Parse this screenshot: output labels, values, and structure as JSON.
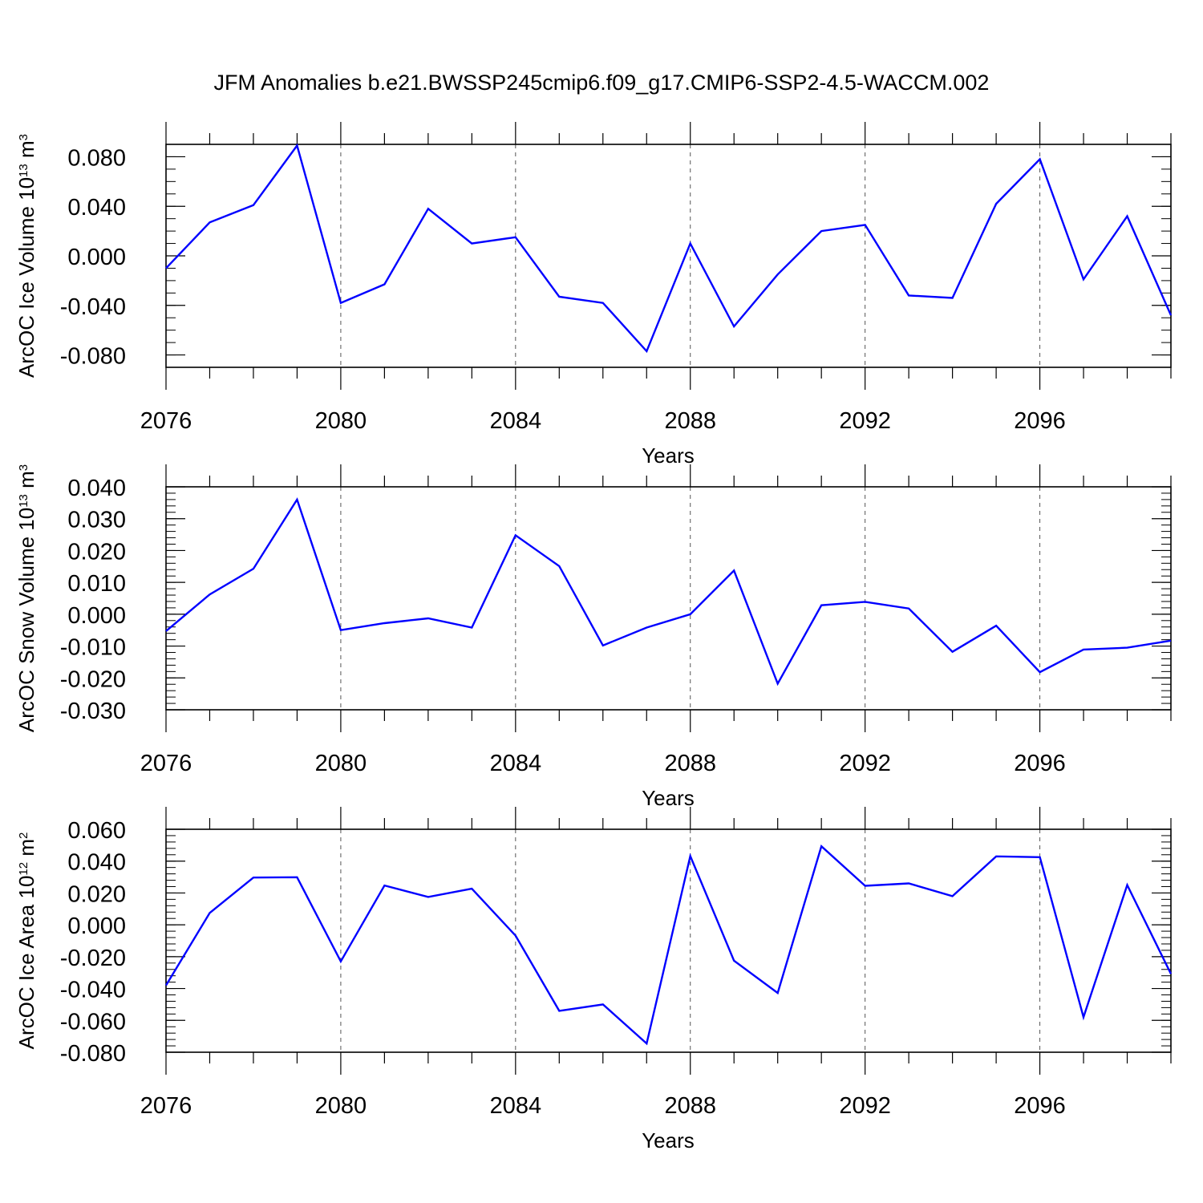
{
  "title": "JFM Anomalies b.e21.BWSSP245cmip6.f09_g17.CMIP6-SSP2-4.5-WACCM.002",
  "line_color": "#0000ff",
  "chart_data": [
    {
      "type": "line",
      "ylabel": "ArcOC Ice Volume",
      "yunit_base": "10",
      "yunit_exp": "13",
      "yunit_base_unit": "m",
      "yunit_unit_exp": "3",
      "xlabel": "Years",
      "xlim": [
        2076,
        2099
      ],
      "ylim": [
        -0.09,
        0.09
      ],
      "xticks": [
        "2076",
        "2080",
        "2084",
        "2088",
        "2092",
        "2096"
      ],
      "xtick_values": [
        2076,
        2080,
        2084,
        2088,
        2092,
        2096
      ],
      "yticks": [
        "0.080",
        "0.040",
        "0.000",
        "-0.040",
        "-0.080"
      ],
      "ytick_values": [
        0.08,
        0.04,
        0.0,
        -0.04,
        -0.08
      ],
      "yminor_step": 0.01,
      "x": [
        2076,
        2077,
        2078,
        2079,
        2080,
        2081,
        2082,
        2083,
        2084,
        2085,
        2086,
        2087,
        2088,
        2089,
        2090,
        2091,
        2092,
        2093,
        2094,
        2095,
        2096,
        2097,
        2098,
        2099
      ],
      "series": [
        {
          "values": [
            -0.01,
            0.027,
            0.041,
            0.089,
            -0.038,
            -0.023,
            0.038,
            0.01,
            0.015,
            -0.033,
            -0.038,
            -0.077,
            0.01,
            -0.057,
            -0.015,
            0.02,
            0.025,
            -0.032,
            -0.034,
            0.042,
            0.078,
            -0.019,
            0.032,
            -0.048
          ]
        }
      ]
    },
    {
      "type": "line",
      "ylabel": "ArcOC Snow Volume",
      "yunit_base": "10",
      "yunit_exp": "13",
      "yunit_base_unit": "m",
      "yunit_unit_exp": "3",
      "xlabel": "Years",
      "xlim": [
        2076,
        2099
      ],
      "ylim": [
        -0.03,
        0.04
      ],
      "xticks": [
        "2076",
        "2080",
        "2084",
        "2088",
        "2092",
        "2096"
      ],
      "xtick_values": [
        2076,
        2080,
        2084,
        2088,
        2092,
        2096
      ],
      "yticks": [
        "0.040",
        "0.030",
        "0.020",
        "0.010",
        "0.000",
        "-0.010",
        "-0.020",
        "-0.030"
      ],
      "ytick_values": [
        0.04,
        0.03,
        0.02,
        0.01,
        0.0,
        -0.01,
        -0.02,
        -0.03
      ],
      "yminor_step": 0.002,
      "x": [
        2076,
        2077,
        2078,
        2079,
        2080,
        2081,
        2082,
        2083,
        2084,
        2085,
        2086,
        2087,
        2088,
        2089,
        2090,
        2091,
        2092,
        2093,
        2094,
        2095,
        2096,
        2097,
        2098,
        2099
      ],
      "series": [
        {
          "values": [
            -0.0053,
            0.0062,
            0.0143,
            0.036,
            -0.005,
            -0.0028,
            -0.0013,
            -0.0042,
            0.0248,
            0.0151,
            -0.0098,
            -0.0042,
            0.0,
            0.0137,
            -0.0218,
            0.0028,
            0.0039,
            0.0018,
            -0.0118,
            -0.0036,
            -0.0182,
            -0.0111,
            -0.0105,
            -0.0083
          ]
        }
      ]
    },
    {
      "type": "line",
      "ylabel": "ArcOC Ice Area",
      "yunit_base": "10",
      "yunit_exp": "12",
      "yunit_base_unit": "m",
      "yunit_unit_exp": "2",
      "xlabel": "Years",
      "xlim": [
        2076,
        2099
      ],
      "ylim": [
        -0.08,
        0.06
      ],
      "xticks": [
        "2076",
        "2080",
        "2084",
        "2088",
        "2092",
        "2096"
      ],
      "xtick_values": [
        2076,
        2080,
        2084,
        2088,
        2092,
        2096
      ],
      "yticks": [
        "0.060",
        "0.040",
        "0.020",
        "0.000",
        "-0.020",
        "-0.040",
        "-0.060",
        "-0.080"
      ],
      "ytick_values": [
        0.06,
        0.04,
        0.02,
        0.0,
        -0.02,
        -0.04,
        -0.06,
        -0.08
      ],
      "yminor_step": 0.004,
      "x": [
        2076,
        2077,
        2078,
        2079,
        2080,
        2081,
        2082,
        2083,
        2084,
        2085,
        2086,
        2087,
        2088,
        2089,
        2090,
        2091,
        2092,
        2093,
        2094,
        2095,
        2096,
        2097,
        2098,
        2099
      ],
      "series": [
        {
          "values": [
            -0.038,
            0.0075,
            0.0297,
            0.0299,
            -0.023,
            0.0247,
            0.0175,
            0.0227,
            -0.0068,
            -0.054,
            -0.05,
            -0.0745,
            0.0432,
            -0.0225,
            -0.0428,
            0.0493,
            0.0245,
            0.026,
            0.018,
            0.043,
            0.0425,
            -0.058,
            0.025,
            -0.0308
          ]
        }
      ]
    }
  ]
}
